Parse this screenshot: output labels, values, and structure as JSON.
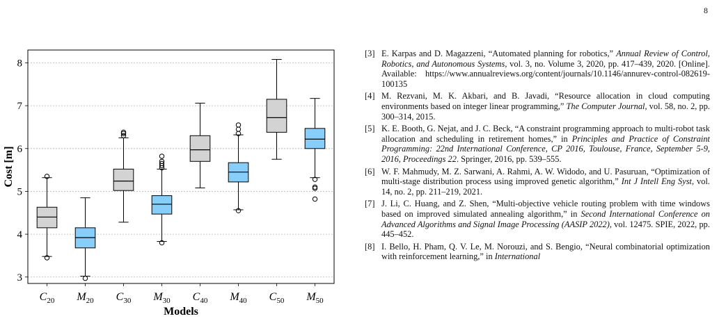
{
  "page_number": "8",
  "figure": {
    "ylabel": "Cost [m]",
    "xlabel": "Models",
    "yticks": [
      "3",
      "4",
      "5",
      "6",
      "7",
      "8"
    ],
    "categories": [
      {
        "base": "C",
        "sub": "20"
      },
      {
        "base": "M",
        "sub": "20"
      },
      {
        "base": "C",
        "sub": "30"
      },
      {
        "base": "M",
        "sub": "30"
      },
      {
        "base": "C",
        "sub": "40"
      },
      {
        "base": "M",
        "sub": "40"
      },
      {
        "base": "C",
        "sub": "50"
      },
      {
        "base": "M",
        "sub": "50"
      }
    ]
  },
  "chart_data": {
    "type": "box",
    "xlabel": "Models",
    "ylabel": "Cost [m]",
    "ylim": [
      2.85,
      8.3
    ],
    "grid": "horizontal dashed",
    "categories": [
      "C20",
      "M20",
      "C30",
      "M30",
      "C40",
      "M40",
      "C50",
      "M50"
    ],
    "colors": {
      "C": "#d3d3d3",
      "M": "#87cefa"
    },
    "boxes": [
      {
        "name": "C20",
        "whisker_low": 3.48,
        "q1": 4.15,
        "median": 4.4,
        "q3": 4.63,
        "whisker_high": 5.32,
        "outliers": [
          3.45,
          5.35
        ]
      },
      {
        "name": "M20",
        "whisker_low": 3.02,
        "q1": 3.68,
        "median": 3.92,
        "q3": 4.15,
        "whisker_high": 4.85,
        "outliers": [
          2.97
        ]
      },
      {
        "name": "C30",
        "whisker_low": 4.28,
        "q1": 5.02,
        "median": 5.24,
        "q3": 5.52,
        "whisker_high": 6.25,
        "outliers": [
          6.3,
          6.35,
          6.38
        ]
      },
      {
        "name": "M30",
        "whisker_low": 3.83,
        "q1": 4.47,
        "median": 4.7,
        "q3": 4.9,
        "whisker_high": 5.52,
        "outliers": [
          3.8,
          5.55,
          5.6,
          5.65,
          5.7,
          5.82
        ]
      },
      {
        "name": "C40",
        "whisker_low": 5.08,
        "q1": 5.7,
        "median": 5.97,
        "q3": 6.3,
        "whisker_high": 7.06,
        "outliers": []
      },
      {
        "name": "M40",
        "whisker_low": 4.57,
        "q1": 5.22,
        "median": 5.45,
        "q3": 5.67,
        "whisker_high": 6.32,
        "outliers": [
          4.55,
          6.35,
          6.45,
          6.55
        ]
      },
      {
        "name": "C50",
        "whisker_low": 5.75,
        "q1": 6.38,
        "median": 6.72,
        "q3": 7.15,
        "whisker_high": 8.08,
        "outliers": []
      },
      {
        "name": "M50",
        "whisker_low": 5.32,
        "q1": 6.0,
        "median": 6.22,
        "q3": 6.47,
        "whisker_high": 7.17,
        "outliers": [
          5.28,
          5.1,
          5.07,
          4.82
        ]
      }
    ]
  },
  "references": [
    {
      "num": "[3]",
      "parts": [
        {
          "t": "E. Karpas and D. Magazzeni, “Automated planning for robotics,” "
        },
        {
          "t": "Annual Review of Control, Robotics, and Autonomous Systems",
          "i": true
        },
        {
          "t": ", vol. 3, no. Volume 3, 2020, pp. 417–439, 2020. [Online]. Available: https://www.annualreviews.org/content/journals/10.1146/annurev-control-082619-100135"
        }
      ]
    },
    {
      "num": "[4]",
      "parts": [
        {
          "t": "M. Rezvani, M. K. Akbari, and B. Javadi, “Resource allocation in cloud computing environments based on integer linear programming,” "
        },
        {
          "t": "The Computer Journal",
          "i": true
        },
        {
          "t": ", vol. 58, no. 2, pp. 300–314, 2015."
        }
      ]
    },
    {
      "num": "[5]",
      "parts": [
        {
          "t": "K. E. Booth, G. Nejat, and J. C. Beck, “A constraint programming approach to multi-robot task allocation and scheduling in retirement homes,” in "
        },
        {
          "t": "Principles and Practice of Constraint Programming: 22nd International Conference, CP 2016, Toulouse, France, September 5-9, 2016, Proceedings 22",
          "i": true
        },
        {
          "t": ". Springer, 2016, pp. 539–555."
        }
      ]
    },
    {
      "num": "[6]",
      "parts": [
        {
          "t": "W. F. Mahmudy, M. Z. Sarwani, A. Rahmi, A. W. Widodo, and U. Pasuruan, “Optimization of multi-stage distribution process using improved genetic algorithm,” "
        },
        {
          "t": "Int J Intell Eng Syst",
          "i": true
        },
        {
          "t": ", vol. 14, no. 2, pp. 211–219, 2021."
        }
      ]
    },
    {
      "num": "[7]",
      "parts": [
        {
          "t": "J. Li, C. Huang, and Z. Shen, “Multi-objective vehicle routing problem with time windows based on improved simulated annealing algorithm,” in "
        },
        {
          "t": "Second International Conference on Advanced Algorithms and Signal Image Processing (AASIP 2022)",
          "i": true
        },
        {
          "t": ", vol. 12475. SPIE, 2022, pp. 445–452."
        }
      ]
    },
    {
      "num": "[8]",
      "parts": [
        {
          "t": "I. Bello, H. Pham, Q. V. Le, M. Norouzi, and S. Bengio, “Neural combinatorial optimization with reinforcement learning,” in "
        },
        {
          "t": "International",
          "i": true
        }
      ]
    }
  ]
}
